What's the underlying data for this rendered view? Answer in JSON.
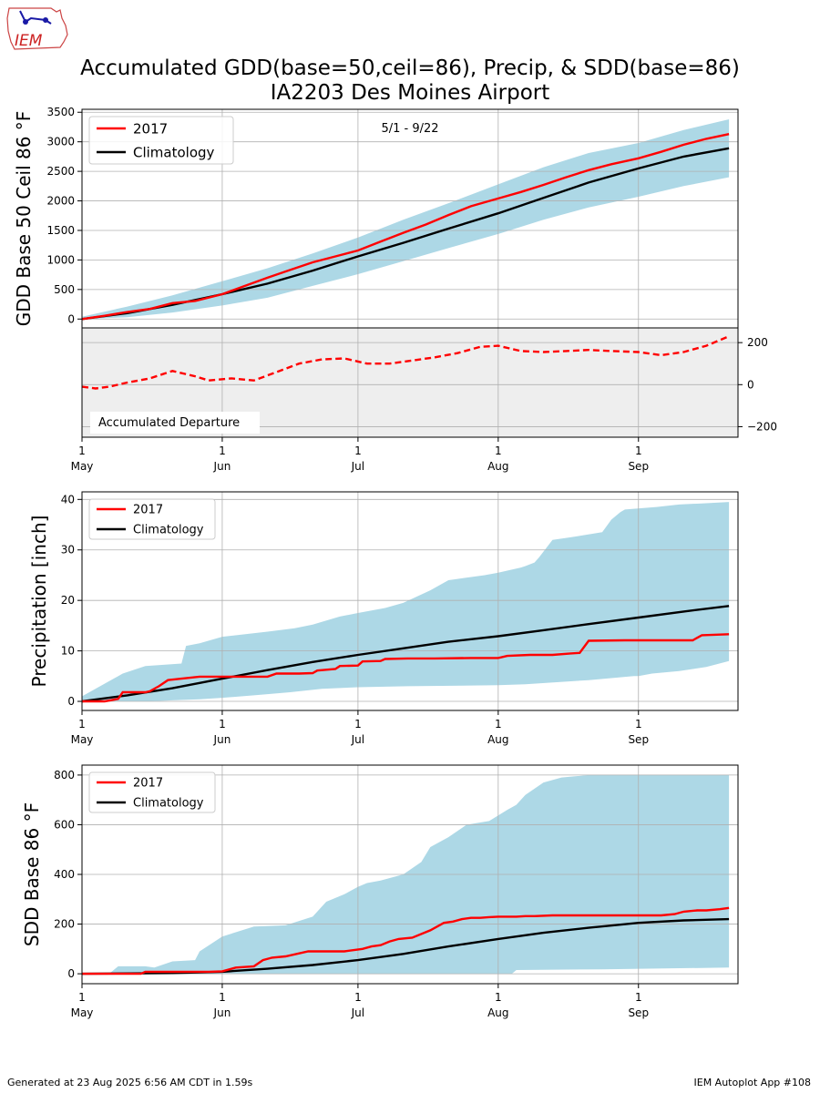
{
  "header": {
    "logo_text": "IEM",
    "title_line1": "Accumulated GDD(base=50,ceil=86), Precip, & SDD(base=86)",
    "title_line2": "IA2203 Des Moines Airport"
  },
  "footer": {
    "generated": "Generated at 23 Aug 2025 6:56 AM CDT in 1.59s",
    "app": "IEM Autoplot App #108"
  },
  "colors": {
    "observed": "#ff0000",
    "climatology": "#000000",
    "range": "#add8e6",
    "departure_bg": "#eeeeee",
    "grid": "#b0b0b0"
  },
  "x_axis": {
    "tick_days": [
      0,
      31,
      61,
      92,
      123
    ],
    "tick_day_labels": [
      "1",
      "1",
      "1",
      "1",
      "1"
    ],
    "tick_month_labels": [
      "May",
      "Jun",
      "Jul",
      "Aug",
      "Sep"
    ],
    "xlim_days": [
      0,
      145
    ]
  },
  "chart_data": [
    {
      "id": "gdd",
      "type": "line",
      "ylabel": "GDD Base 50 Ceil 86 °F",
      "annotation": "5/1 - 9/22",
      "ylim": [
        -150,
        3550
      ],
      "yticks": [
        0,
        500,
        1000,
        1500,
        2000,
        2500,
        3000,
        3500
      ],
      "legend": [
        "2017",
        "Climatology"
      ],
      "legend_position": "top-left",
      "grid": true,
      "obs": {
        "x": [
          0,
          5,
          10,
          15,
          20,
          25,
          31,
          36,
          41,
          46,
          51,
          56,
          61,
          66,
          71,
          76,
          81,
          86,
          92,
          97,
          102,
          107,
          112,
          117,
          123,
          128,
          133,
          138,
          143
        ],
        "y": [
          0,
          55,
          120,
          170,
          270,
          305,
          420,
          560,
          700,
          830,
          960,
          1060,
          1160,
          1310,
          1460,
          1600,
          1760,
          1910,
          2040,
          2150,
          2270,
          2400,
          2520,
          2620,
          2720,
          2830,
          2950,
          3050,
          3130
        ]
      },
      "clim": {
        "x": [
          0,
          10,
          20,
          31,
          41,
          51,
          61,
          71,
          81,
          92,
          102,
          112,
          123,
          133,
          143
        ],
        "y": [
          0,
          100,
          240,
          420,
          600,
          820,
          1060,
          1290,
          1530,
          1790,
          2050,
          2310,
          2550,
          2750,
          2890
        ]
      },
      "range_upper": {
        "x": [
          0,
          10,
          20,
          31,
          41,
          51,
          61,
          71,
          81,
          92,
          102,
          112,
          123,
          133,
          143
        ],
        "y": [
          40,
          210,
          400,
          640,
          860,
          1110,
          1380,
          1680,
          1960,
          2280,
          2570,
          2810,
          2980,
          3200,
          3380
        ]
      },
      "range_lower": {
        "x": [
          0,
          10,
          20,
          31,
          41,
          51,
          61,
          71,
          81,
          92,
          102,
          112,
          123,
          133,
          143
        ],
        "y": [
          0,
          30,
          110,
          230,
          360,
          560,
          760,
          980,
          1200,
          1440,
          1680,
          1890,
          2070,
          2250,
          2400
        ]
      }
    },
    {
      "id": "departure",
      "type": "line",
      "label": "Accumulated Departure",
      "ylim": [
        -250,
        270
      ],
      "yticks": [
        -200,
        0,
        200
      ],
      "grid": true,
      "dep": {
        "x": [
          0,
          3,
          6,
          10,
          15,
          20,
          25,
          28,
          33,
          38,
          43,
          48,
          53,
          58,
          63,
          68,
          73,
          78,
          83,
          88,
          92,
          97,
          102,
          107,
          112,
          117,
          123,
          128,
          133,
          138,
          143
        ],
        "y": [
          -10,
          -18,
          -10,
          10,
          30,
          65,
          40,
          20,
          30,
          20,
          60,
          100,
          120,
          125,
          100,
          100,
          115,
          130,
          150,
          180,
          185,
          160,
          155,
          160,
          165,
          160,
          155,
          140,
          155,
          185,
          230
        ]
      }
    },
    {
      "id": "precip",
      "type": "line",
      "ylabel": "Precipitation [inch]",
      "ylim": [
        -1.8,
        41.5
      ],
      "yticks": [
        0,
        10,
        20,
        30,
        40
      ],
      "legend": [
        "2017",
        "Climatology"
      ],
      "legend_position": "top-left",
      "grid": true,
      "obs": {
        "x": [
          0,
          5,
          8,
          9,
          14,
          15,
          17,
          19,
          22,
          26,
          31,
          36,
          41,
          43,
          48,
          51,
          52,
          56,
          57,
          61,
          62,
          66,
          67,
          72,
          78,
          86,
          92,
          94,
          99,
          104,
          108,
          110,
          112,
          120,
          123,
          130,
          135,
          137,
          143
        ],
        "y": [
          0,
          0,
          0.5,
          1.8,
          1.8,
          2.0,
          3.0,
          4.2,
          4.5,
          4.9,
          4.9,
          4.9,
          4.9,
          5.5,
          5.5,
          5.6,
          6.1,
          6.4,
          7.0,
          7.1,
          7.9,
          8.0,
          8.4,
          8.5,
          8.5,
          8.6,
          8.6,
          9.0,
          9.2,
          9.2,
          9.5,
          9.6,
          12.0,
          12.1,
          12.1,
          12.1,
          12.1,
          13.1,
          13.3
        ]
      },
      "clim": {
        "x": [
          0,
          10,
          20,
          31,
          41,
          51,
          61,
          71,
          81,
          92,
          102,
          112,
          123,
          133,
          143
        ],
        "y": [
          0,
          1.2,
          2.6,
          4.5,
          6.2,
          7.8,
          9.2,
          10.5,
          11.8,
          12.9,
          14.1,
          15.3,
          16.6,
          17.8,
          18.9
        ]
      },
      "range_upper": {
        "x": [
          0,
          4,
          9,
          14,
          22,
          23,
          26,
          31,
          41,
          47,
          51,
          57,
          61,
          67,
          71,
          77,
          81,
          89,
          92,
          97,
          98,
          100,
          101,
          104,
          108,
          115,
          117,
          119,
          120,
          127,
          132,
          137,
          143
        ],
        "y": [
          1,
          3,
          5.5,
          7,
          7.5,
          11,
          11.5,
          12.8,
          13.8,
          14.5,
          15.2,
          16.8,
          17.5,
          18.5,
          19.5,
          22,
          24,
          25,
          25.5,
          26.5,
          26.8,
          27.5,
          28.5,
          32,
          32.5,
          33.5,
          36,
          37.5,
          38,
          38.5,
          39,
          39.2,
          39.5
        ]
      },
      "range_lower": {
        "x": [
          0,
          15,
          20,
          26,
          31,
          38,
          46,
          53,
          61,
          72,
          92,
          98,
          112,
          122,
          123,
          126,
          132,
          138,
          143
        ],
        "y": [
          0,
          0,
          0.2,
          0.4,
          0.7,
          1.2,
          1.8,
          2.5,
          2.8,
          3.0,
          3.2,
          3.4,
          4.2,
          5.0,
          5.0,
          5.5,
          6.0,
          6.8,
          8.0
        ]
      }
    },
    {
      "id": "sdd",
      "type": "line",
      "ylabel": "SDD Base 86 °F",
      "ylim": [
        -40,
        840
      ],
      "yticks": [
        0,
        200,
        400,
        600,
        800
      ],
      "legend": [
        "2017",
        "Climatology"
      ],
      "legend_position": "top-left",
      "grid": true,
      "obs": {
        "x": [
          0,
          8,
          13,
          14,
          20,
          28,
          31,
          34,
          38,
          40,
          42,
          45,
          50,
          55,
          58,
          62,
          64,
          66,
          68,
          70,
          73,
          77,
          80,
          82,
          84,
          86,
          88,
          90,
          92,
          96,
          98,
          100,
          104,
          108,
          112,
          117,
          123,
          128,
          131,
          133,
          136,
          138,
          141,
          143
        ],
        "y": [
          0,
          0,
          0,
          8,
          8,
          8,
          10,
          25,
          30,
          55,
          65,
          70,
          90,
          90,
          90,
          100,
          110,
          115,
          130,
          140,
          145,
          175,
          205,
          210,
          220,
          225,
          225,
          228,
          230,
          230,
          232,
          232,
          235,
          235,
          235,
          235,
          235,
          235,
          240,
          250,
          255,
          255,
          260,
          265
        ]
      },
      "clim": {
        "x": [
          0,
          20,
          31,
          41,
          51,
          61,
          71,
          81,
          92,
          102,
          112,
          123,
          133,
          143
        ],
        "y": [
          0,
          3,
          8,
          20,
          35,
          55,
          80,
          110,
          140,
          165,
          185,
          205,
          215,
          220
        ]
      },
      "range_upper": {
        "x": [
          0,
          6,
          8,
          14,
          16,
          20,
          25,
          26,
          31,
          38,
          45,
          51,
          54,
          58,
          61,
          63,
          66,
          71,
          75,
          77,
          81,
          85,
          90,
          94,
          96,
          98,
          102,
          106,
          109,
          112,
          117,
          123,
          143
        ],
        "y": [
          0,
          0,
          30,
          30,
          25,
          50,
          55,
          90,
          150,
          190,
          195,
          230,
          290,
          320,
          350,
          365,
          375,
          400,
          450,
          510,
          550,
          600,
          615,
          660,
          680,
          720,
          770,
          790,
          795,
          800,
          800,
          800,
          800
        ]
      },
      "range_lower": {
        "x": [
          0,
          80,
          88,
          92,
          95,
          96,
          115,
          143
        ],
        "y": [
          0,
          0,
          0,
          0,
          0,
          15,
          18,
          25
        ]
      }
    }
  ]
}
